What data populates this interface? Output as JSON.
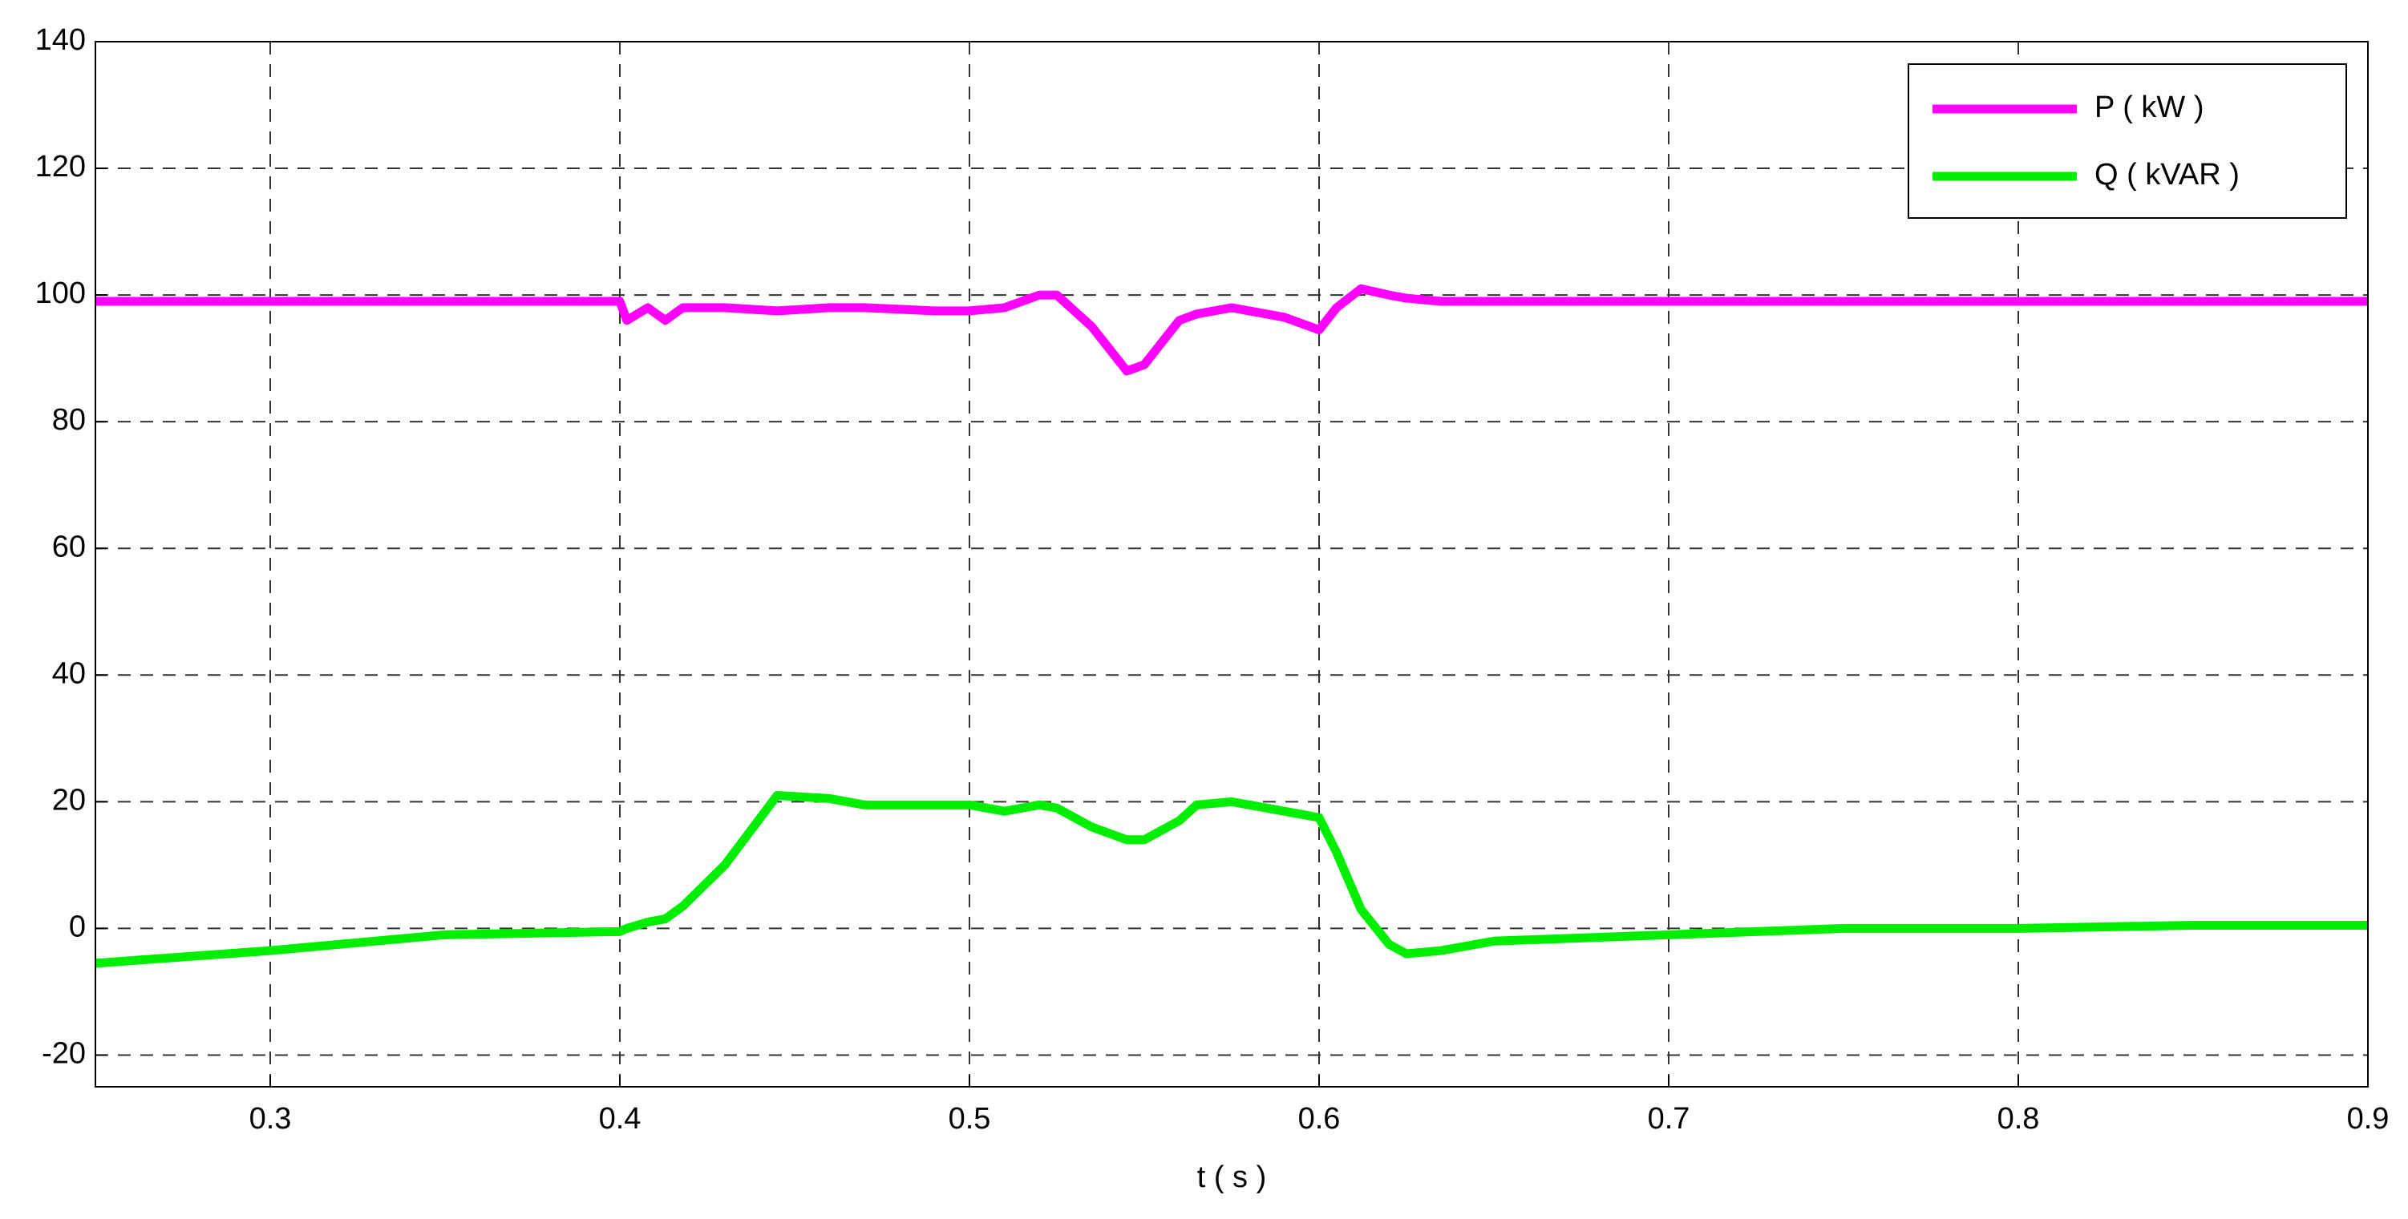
{
  "chart_data": {
    "type": "line",
    "xlabel": "t ( s )",
    "xlim": [
      0.25,
      0.9
    ],
    "xticks": [
      0.3,
      0.4,
      0.5,
      0.6,
      0.7,
      0.8,
      0.9
    ],
    "ylim": [
      -25,
      140
    ],
    "yticks": [
      -20,
      0,
      20,
      40,
      60,
      80,
      100,
      120,
      140
    ],
    "grid": true,
    "legend": "upper right",
    "x": [
      0.25,
      0.3,
      0.35,
      0.4,
      0.402,
      0.408,
      0.413,
      0.418,
      0.43,
      0.445,
      0.46,
      0.47,
      0.49,
      0.5,
      0.51,
      0.52,
      0.525,
      0.535,
      0.545,
      0.55,
      0.56,
      0.565,
      0.575,
      0.59,
      0.6,
      0.605,
      0.612,
      0.62,
      0.625,
      0.635,
      0.65,
      0.7,
      0.75,
      0.8,
      0.85,
      0.9
    ],
    "series": [
      {
        "name": "P ( kW )",
        "color": "#ff00ff",
        "values": [
          99,
          99,
          99,
          99,
          96,
          98,
          96,
          98,
          98,
          97.5,
          98,
          98,
          97.5,
          97.5,
          98,
          100,
          100,
          95,
          88,
          89,
          96,
          97,
          98,
          96.5,
          94.5,
          98,
          101,
          100,
          99.5,
          99,
          99,
          99,
          99,
          99,
          99,
          99
        ]
      },
      {
        "name": "Q ( kVAR )",
        "color": "#00ee00",
        "values": [
          -5.5,
          -3.5,
          -1,
          -0.5,
          0,
          1,
          1.5,
          3.5,
          10,
          21,
          20.5,
          19.5,
          19.5,
          19.5,
          18.5,
          19.5,
          19,
          16,
          14,
          14,
          17,
          19.5,
          20,
          18.5,
          17.5,
          12,
          3,
          -2.5,
          -4,
          -3.5,
          -2,
          -1,
          0,
          0,
          0.5,
          0.5
        ]
      }
    ]
  }
}
